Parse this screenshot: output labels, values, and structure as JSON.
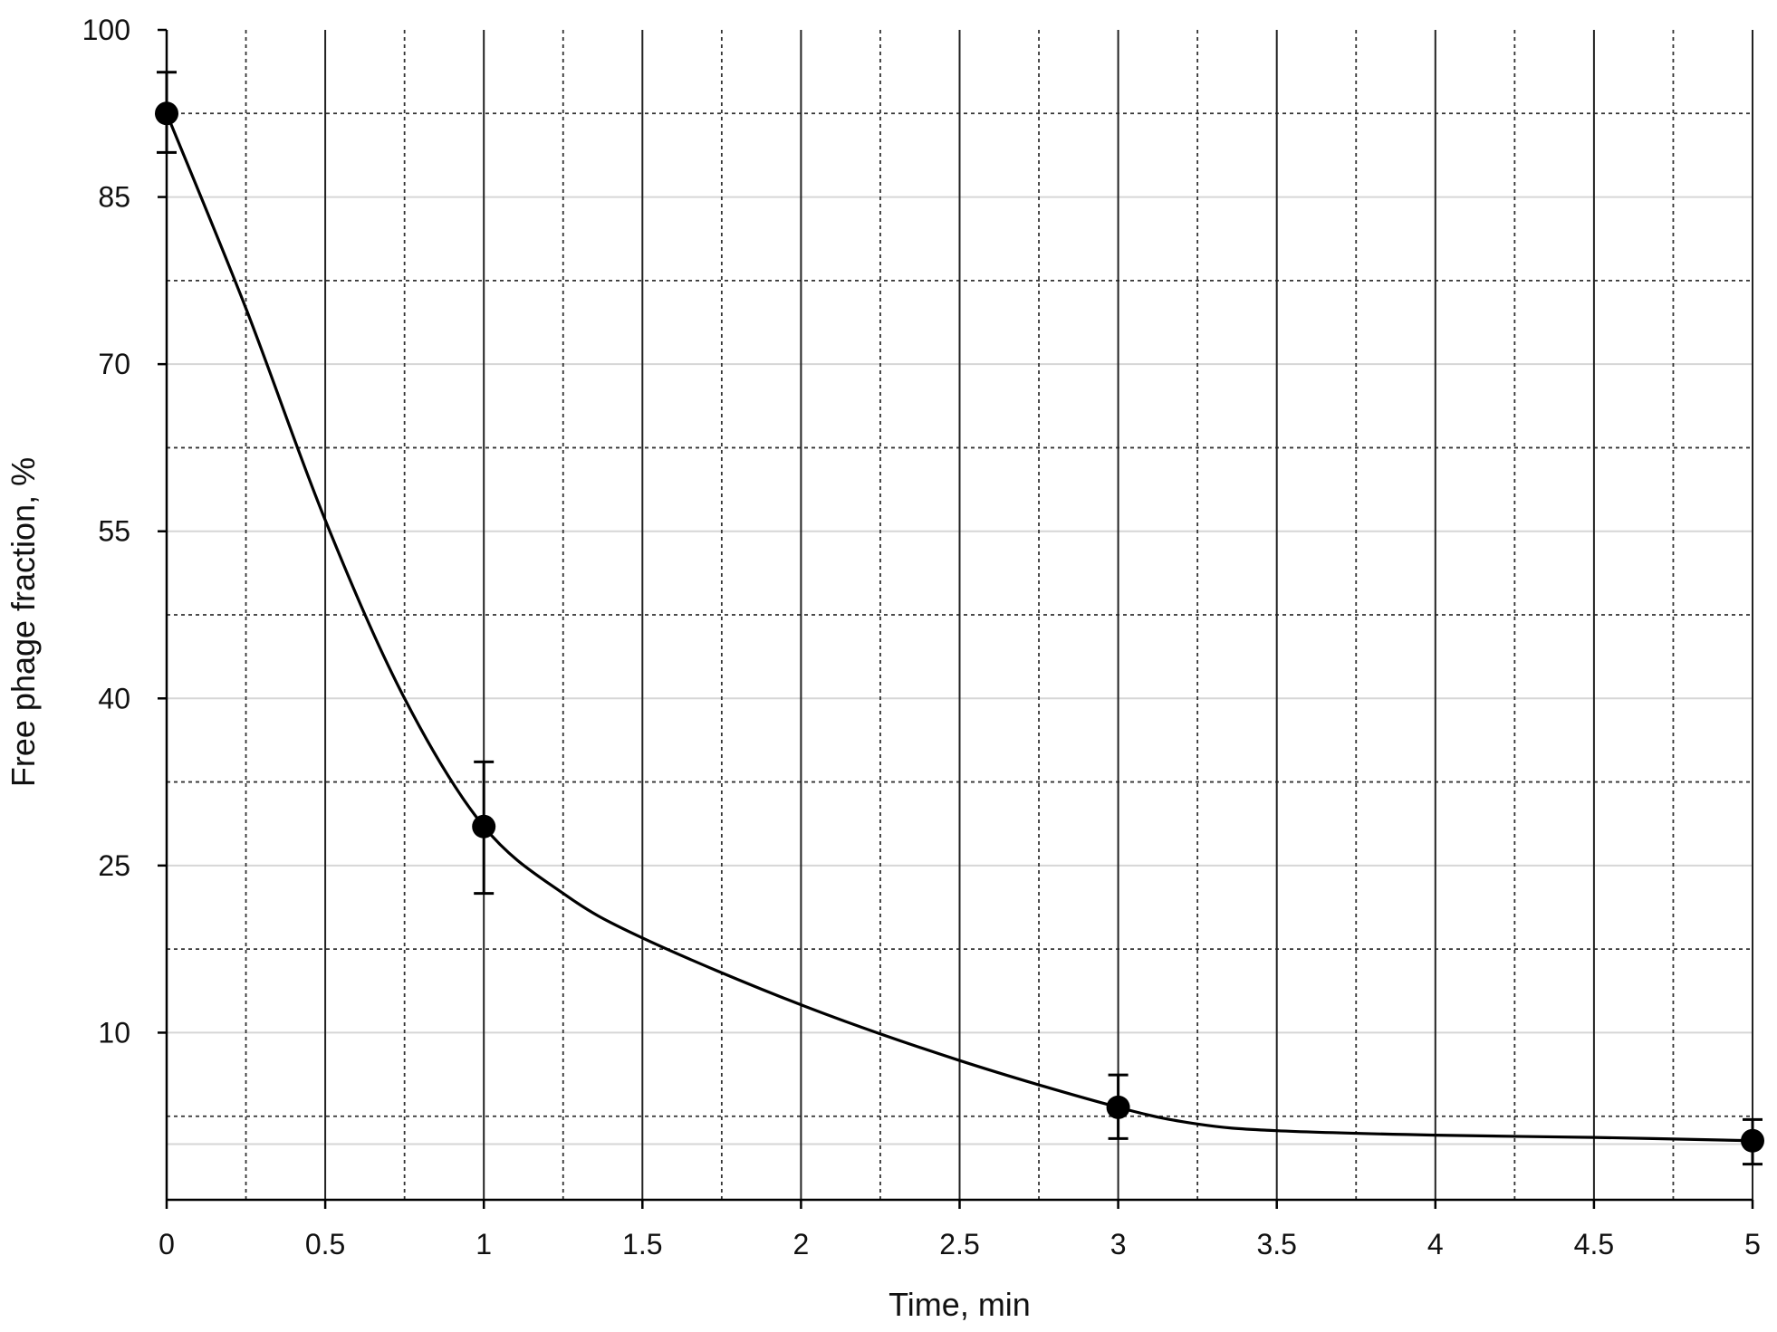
{
  "chart_data": {
    "type": "line",
    "title": "",
    "xlabel": "Time, min",
    "ylabel": "Free phage fraction, %",
    "xlim": [
      0,
      5
    ],
    "ylim": [
      -5,
      100
    ],
    "x_ticks": [
      "0",
      "0.5",
      "1",
      "1.5",
      "2",
      "2.5",
      "3",
      "3.5",
      "4",
      "4.5",
      "5"
    ],
    "y_ticks": [
      "10",
      "25",
      "40",
      "55",
      "70",
      "85",
      "100"
    ],
    "x_tick_values": [
      0,
      0.5,
      1,
      1.5,
      2,
      2.5,
      3,
      3.5,
      4,
      4.5,
      5
    ],
    "y_tick_values": [
      10,
      25,
      40,
      55,
      70,
      85,
      100
    ],
    "grid": {
      "major_vertical": true,
      "minor_vertical_dotted": true,
      "major_horizontal_light": true,
      "minor_horizontal_dotted": true
    },
    "points": [
      {
        "x": 0,
        "y": 92.5,
        "err_low": 89,
        "err_high": 96.2
      },
      {
        "x": 1,
        "y": 28.5,
        "err_low": 22.5,
        "err_high": 34.3
      },
      {
        "x": 3,
        "y": 3.3,
        "err_low": 0.5,
        "err_high": 6.2
      },
      {
        "x": 5,
        "y": 0.3,
        "err_low": -1.8,
        "err_high": 2.2
      }
    ],
    "curve": {
      "x": [
        0,
        0.25,
        0.5,
        0.75,
        1,
        1.25,
        1.5,
        2,
        2.5,
        3,
        3.25,
        3.5,
        4,
        4.5,
        5
      ],
      "y": [
        92.5,
        75,
        56,
        40,
        28.5,
        22.5,
        18.5,
        12.5,
        7.5,
        3.3,
        1.8,
        1.2,
        0.8,
        0.6,
        0.3
      ]
    },
    "colors": {
      "line": "#000000",
      "marker": "#000000",
      "major_grid": "#222222",
      "minor_grid": "#333333",
      "light_grid": "#d6d6d6"
    }
  }
}
